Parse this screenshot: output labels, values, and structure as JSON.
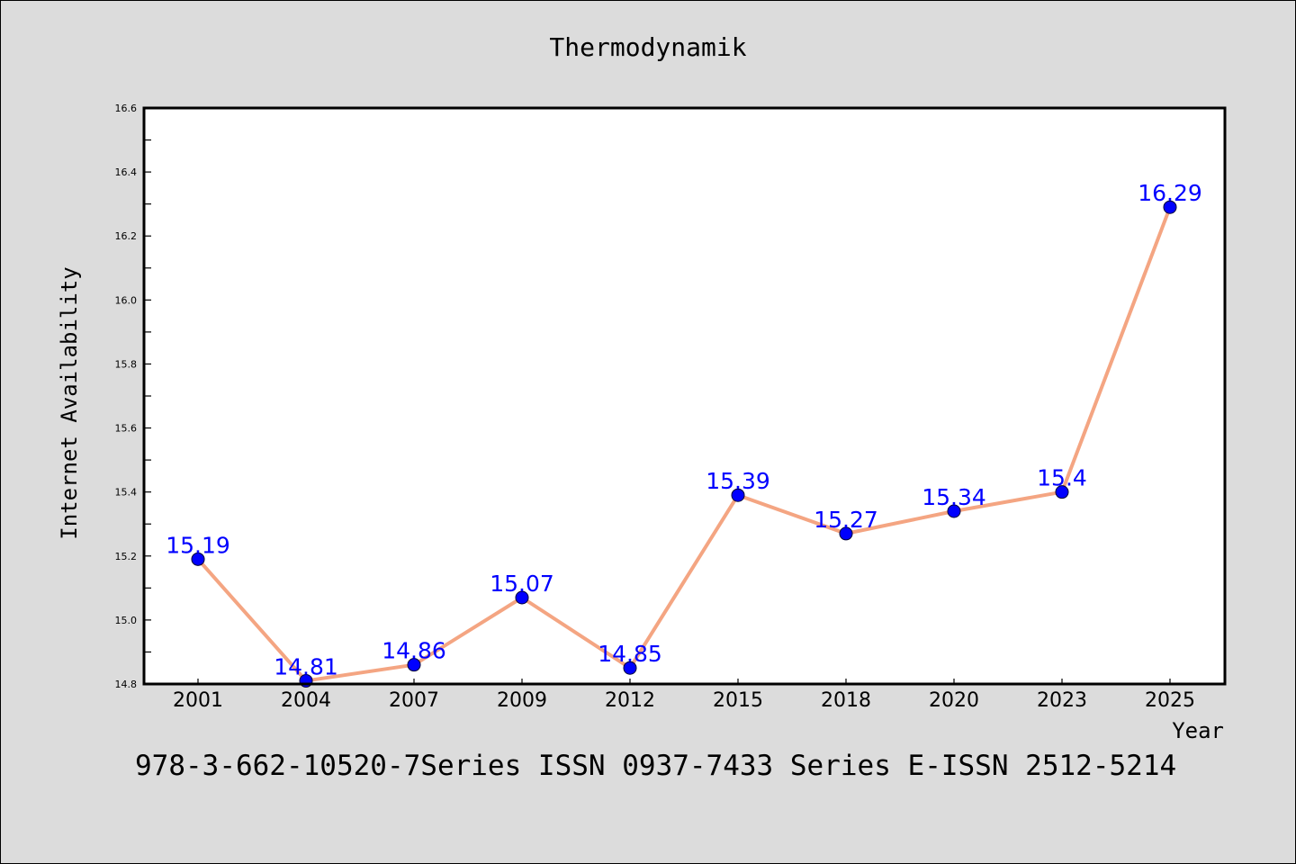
{
  "chart_data": {
    "type": "line",
    "title": "Thermodynamik",
    "xlabel": "Year",
    "ylabel": "Internet Availability",
    "categories": [
      "2001",
      "2004",
      "2007",
      "2009",
      "2012",
      "2015",
      "2018",
      "2020",
      "2023",
      "2025"
    ],
    "series": [
      {
        "values": [
          15.19,
          14.81,
          14.86,
          15.07,
          14.85,
          15.39,
          15.27,
          15.34,
          15.4,
          16.29
        ],
        "labels": [
          "15.19",
          "14.81",
          "14.86",
          "15.07",
          "14.85",
          "15.39",
          "15.27",
          "15.34",
          "15.4",
          "16.29"
        ],
        "line_color": "#f4a582",
        "marker_color": "#0000ff"
      }
    ],
    "ylim": [
      14.8,
      16.6
    ],
    "yticks": [
      "14.8",
      "15.0",
      "15.2",
      "15.4",
      "15.6",
      "15.8",
      "16.0",
      "16.2",
      "16.4",
      "16.6"
    ],
    "grid": false,
    "background": "#dcdcdc",
    "plot_background": "#ffffff"
  },
  "footer": {
    "text": "978-3-662-10520-7Series ISSN 0937-7433 Series E-ISSN 2512-5214"
  }
}
